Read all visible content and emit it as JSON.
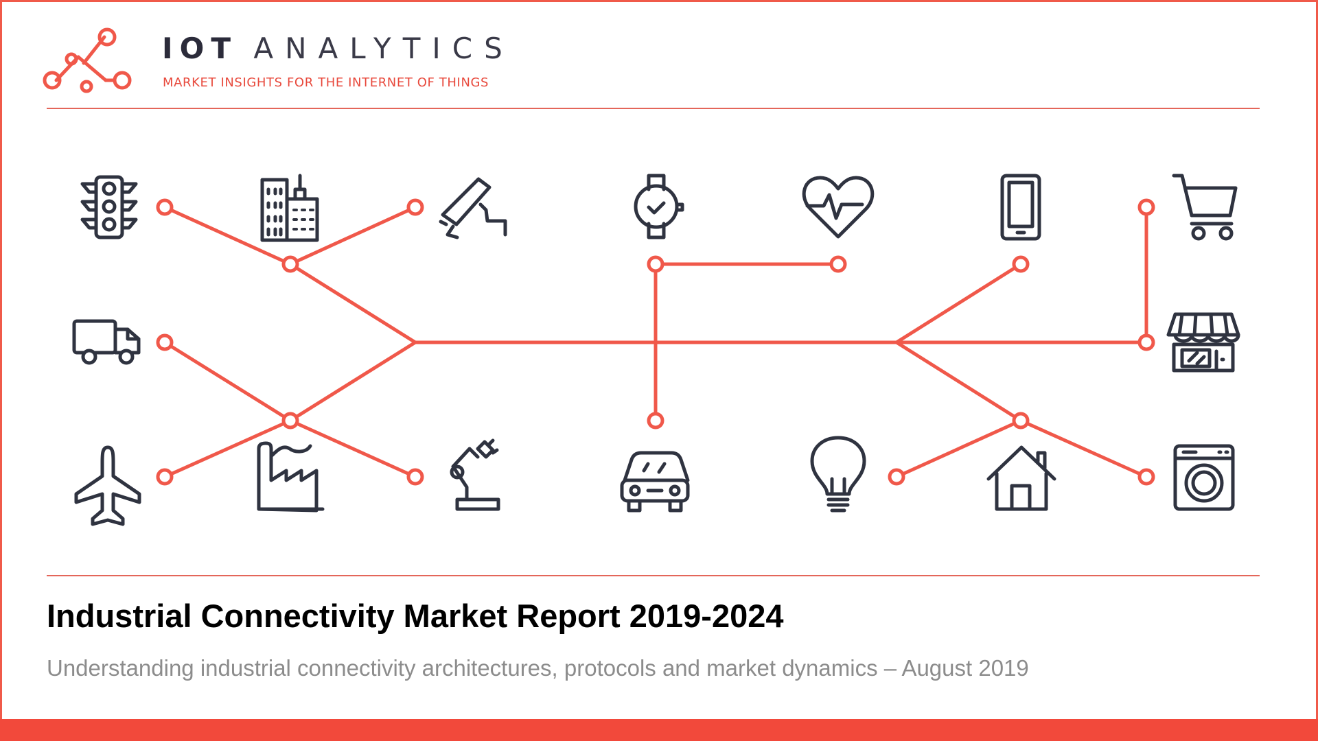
{
  "brand": {
    "name_bold": "IOT",
    "name_light": "ANALYTICS",
    "tagline": "MARKET INSIGHTS FOR THE INTERNET OF THINGS"
  },
  "report": {
    "title": "Industrial Connectivity Market Report 2019-2024",
    "subtitle": "Understanding industrial connectivity architectures, protocols and market dynamics – August 2019"
  },
  "icons": [
    "traffic-light-icon",
    "office-building-icon",
    "security-camera-icon",
    "smartwatch-icon",
    "heart-rate-icon",
    "smartphone-icon",
    "shopping-cart-icon",
    "delivery-truck-icon",
    "storefront-icon",
    "airplane-icon",
    "factory-icon",
    "robot-arm-icon",
    "car-icon",
    "light-bulb-icon",
    "house-icon",
    "washing-machine-icon"
  ],
  "colors": {
    "accent": "#f2493b",
    "line": "#f0584a",
    "icon": "#2f3340",
    "title": "#000000",
    "subtitle": "#8c8c8c"
  }
}
